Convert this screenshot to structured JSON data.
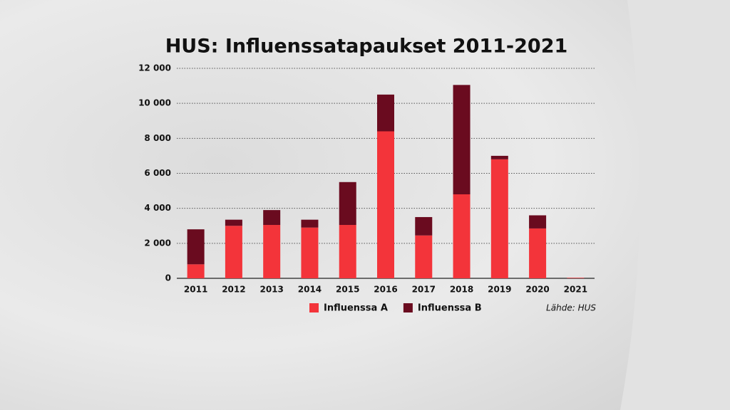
{
  "chart_data": {
    "type": "stacked-bar",
    "title": "HUS: Influenssatapaukset 2011-2021",
    "categories": [
      "2011",
      "2012",
      "2013",
      "2014",
      "2015",
      "2016",
      "2017",
      "2018",
      "2019",
      "2020",
      "2021"
    ],
    "series": [
      {
        "name": "Influenssa A",
        "color": "#f3343a",
        "values": [
          800,
          3000,
          3050,
          2900,
          3050,
          8400,
          2450,
          4800,
          6800,
          2850,
          30
        ]
      },
      {
        "name": "Influenssa B",
        "color": "#6a0b1f",
        "values": [
          2000,
          350,
          850,
          450,
          2450,
          2100,
          1050,
          6250,
          200,
          750,
          0
        ]
      }
    ],
    "ylim": [
      0,
      12000
    ],
    "yticks": [
      0,
      {
        "value": 2000,
        "label": "2 000"
      },
      {
        "value": 4000,
        "label": "4 000"
      },
      {
        "value": 6000,
        "label": "6 000"
      },
      {
        "value": 8000,
        "label": "8 000"
      },
      {
        "value": 10000,
        "label": "10 000"
      },
      {
        "value": 12000,
        "label": "12 000"
      }
    ],
    "grid": true,
    "source": "Lähde: HUS"
  }
}
